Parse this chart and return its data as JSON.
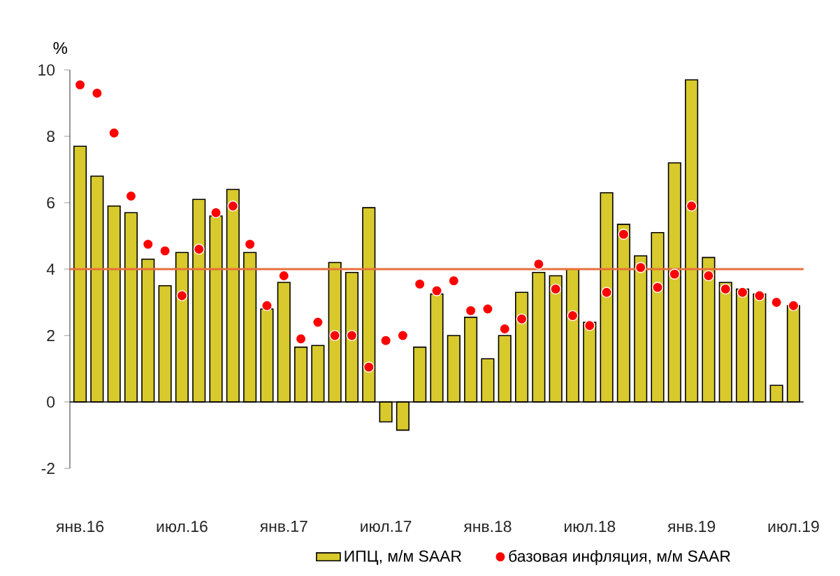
{
  "chart_data": {
    "type": "bar",
    "ylabel": "%",
    "categories": [
      "янв.16",
      null,
      null,
      null,
      null,
      null,
      "июл.16",
      null,
      null,
      null,
      null,
      null,
      "янв.17",
      null,
      null,
      null,
      null,
      null,
      "июл.17",
      null,
      null,
      null,
      null,
      null,
      "янв.18",
      null,
      null,
      null,
      null,
      null,
      "июл.18",
      null,
      null,
      null,
      null,
      null,
      "янв.19",
      null,
      null,
      null,
      null,
      null,
      "июл.19"
    ],
    "series": [
      {
        "name": "ИПЦ, м/м SAAR",
        "color": "#d8c92c",
        "values": [
          7.7,
          6.8,
          5.9,
          5.7,
          4.3,
          3.5,
          4.5,
          6.1,
          5.6,
          6.4,
          4.5,
          2.8,
          3.6,
          1.65,
          1.7,
          4.2,
          3.9,
          5.85,
          -0.6,
          -0.85,
          1.65,
          3.25,
          2.0,
          2.55,
          1.3,
          2.0,
          3.3,
          3.9,
          3.8,
          4.0,
          2.4,
          6.3,
          5.35,
          4.4,
          5.1,
          7.2,
          9.7,
          4.35,
          3.6,
          3.4,
          3.25,
          0.5,
          2.9
        ]
      },
      {
        "name": "базовая инфляция, м/м SAAR",
        "type": "scatter",
        "marker": "circle",
        "color": "#ff0000",
        "values": [
          9.55,
          9.3,
          8.1,
          6.2,
          4.75,
          4.55,
          3.2,
          4.6,
          5.7,
          5.9,
          4.75,
          2.9,
          3.8,
          1.9,
          2.4,
          2.0,
          2.0,
          1.05,
          1.85,
          2.0,
          3.55,
          3.35,
          3.65,
          2.75,
          2.8,
          2.2,
          2.5,
          4.15,
          3.4,
          2.6,
          2.3,
          3.3,
          5.05,
          4.05,
          3.45,
          3.85,
          5.9,
          3.8,
          3.4,
          3.3,
          3.2,
          3.0,
          2.9
        ]
      }
    ],
    "ylim": [
      -2,
      10
    ],
    "yticks": [
      -2,
      0,
      2,
      4,
      6,
      8,
      10
    ],
    "ref_lines": [
      {
        "axis": "y",
        "value": 4,
        "color": "#e8703a"
      }
    ],
    "legend": "bottom",
    "grid": false
  }
}
